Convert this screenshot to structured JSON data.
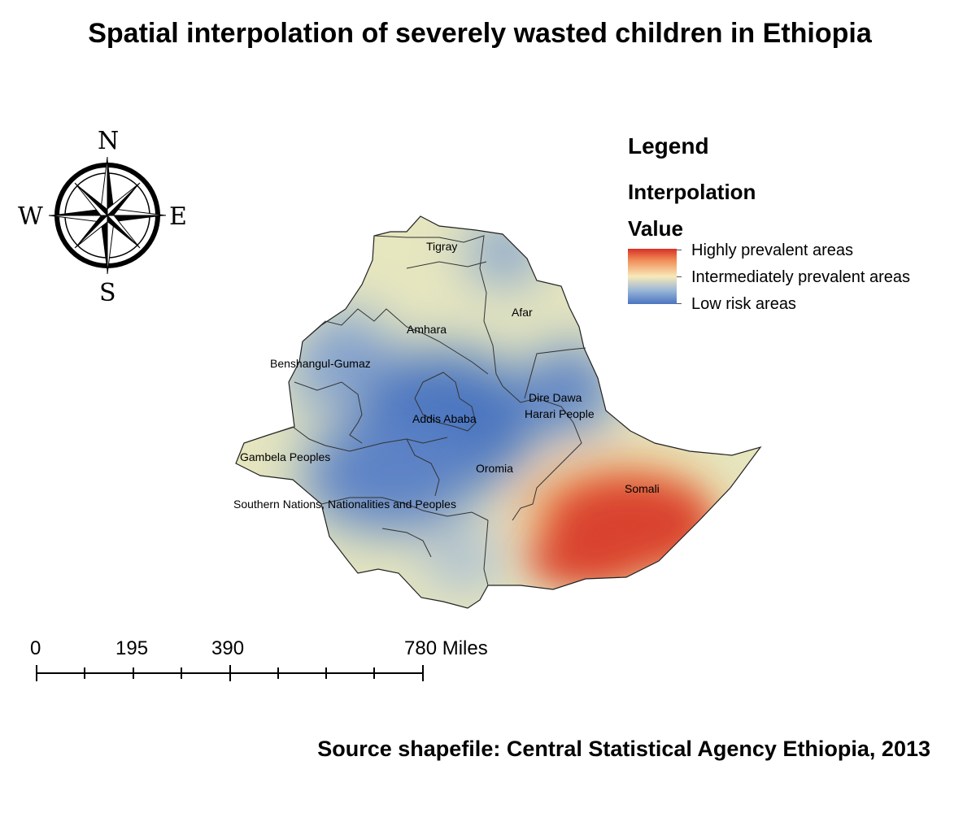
{
  "title": "Spatial interpolation of severely wasted children in Ethiopia",
  "compass": {
    "north": "N",
    "south": "S",
    "east": "E",
    "west": "W"
  },
  "legend": {
    "title": "Legend",
    "subtitle_line1": "Interpolation",
    "subtitle_line2": "Value",
    "items": [
      {
        "label": "Highly prevalent areas",
        "color": "#d73027"
      },
      {
        "label": "Intermediately prevalent areas",
        "color": "#f7e9b8"
      },
      {
        "label": "Low risk areas",
        "color": "#4a74c0"
      }
    ]
  },
  "regions": {
    "tigray": "Tigray",
    "afar": "Afar",
    "amhara": "Amhara",
    "benshangul": "Benshangul-Gumaz",
    "dire_dawa": "Dire Dawa",
    "harari": "Harari People",
    "addis_ababa": "Addis Ababa",
    "gambela": "Gambela Peoples",
    "oromia": "Oromia",
    "somali": "Somali",
    "snnp": "Southern Nations, Nationalities and Peoples"
  },
  "scale_bar": {
    "labels": [
      "0",
      "195",
      "390",
      "780 Miles"
    ]
  },
  "source": "Source shapefile: Central Statistical Agency Ethiopia, 2013"
}
